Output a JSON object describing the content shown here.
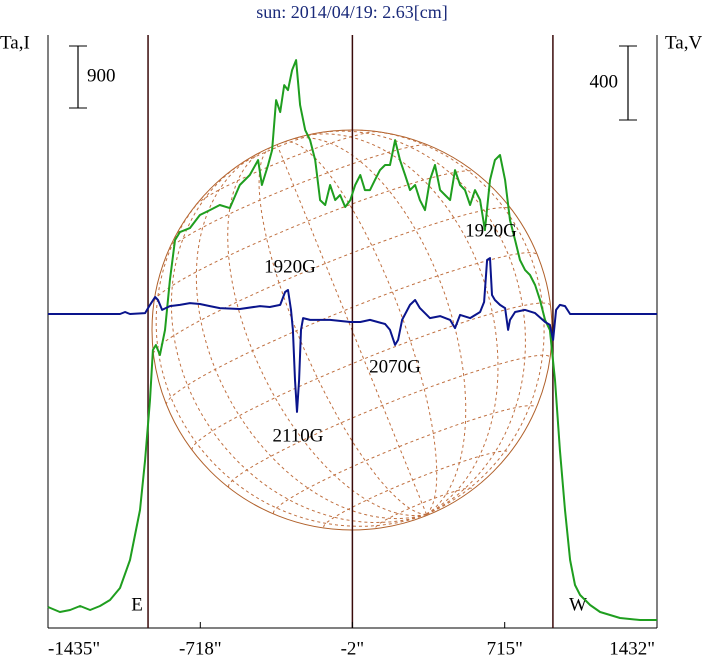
{
  "chart_data": {
    "type": "line",
    "title": "sun: 2014/04/19: 2.63[cm]",
    "ylabel": "Ta,I",
    "y2label": "Ta,V",
    "xlim": [
      -1435,
      1432
    ],
    "xticks": [
      {
        "value": -1435,
        "label": "-1435\""
      },
      {
        "value": -718,
        "label": "-718\""
      },
      {
        "value": -2,
        "label": "-2\""
      },
      {
        "value": 715,
        "label": "715\""
      },
      {
        "value": 1432,
        "label": "1432\""
      }
    ],
    "ylim": [
      0,
      8600
    ],
    "y2lim": [
      -1697,
      1508
    ],
    "vlines": [
      -964,
      -2,
      942
    ],
    "limb_labels": [
      "E",
      "W"
    ],
    "scale_bars": [
      {
        "value": 900,
        "axis": "y"
      },
      {
        "value": 400,
        "axis": "y2"
      }
    ],
    "annotations": [
      "1920G",
      "1920G",
      "2070G",
      "2110G"
    ],
    "series": [
      {
        "color": "#1f9e1f",
        "x": [
          -1435,
          -1379,
          -1331,
          -1284,
          -1237,
          -1190,
          -1143,
          -1096,
          -1049,
          -1002,
          -978,
          -955,
          -941,
          -927,
          -908,
          -884,
          -861,
          -837,
          -814,
          -767,
          -720,
          -673,
          -626,
          -579,
          -532,
          -485,
          -446,
          -428,
          -399,
          -380,
          -361,
          -342,
          -323,
          -305,
          -286,
          -267,
          -248,
          -224,
          -201,
          -177,
          -154,
          -130,
          -107,
          -83,
          -60,
          -36,
          -12,
          11,
          35,
          57,
          81,
          104,
          128,
          152,
          175,
          199,
          222,
          246,
          269,
          293,
          316,
          340,
          363,
          387,
          411,
          434,
          458,
          481,
          505,
          528,
          552,
          575,
          599,
          622,
          646,
          669,
          693,
          717,
          740,
          764,
          787,
          811,
          834,
          858,
          881,
          905,
          928,
          952,
          975,
          999,
          1023,
          1046,
          1070,
          1117,
          1164,
          1258,
          1352,
          1432
        ],
        "values": [
          305,
          232,
          261,
          319,
          261,
          319,
          406,
          580,
          986,
          1711,
          2436,
          3306,
          4031,
          4104,
          3959,
          4321,
          5046,
          5626,
          5742,
          5800,
          5989,
          6061,
          6134,
          6090,
          6424,
          6569,
          6786,
          6424,
          6714,
          6931,
          7656,
          7482,
          7874,
          7801,
          8091,
          8236,
          7584,
          7221,
          7076,
          6786,
          6206,
          6134,
          6424,
          6206,
          6279,
          6105,
          6206,
          6424,
          6569,
          6351,
          6351,
          6496,
          6641,
          6714,
          6714,
          7076,
          6786,
          6569,
          6351,
          6424,
          6206,
          6061,
          6496,
          6714,
          6351,
          6279,
          6206,
          6641,
          6424,
          6351,
          6134,
          6351,
          6206,
          5771,
          6496,
          6786,
          6859,
          6496,
          5916,
          5626,
          5336,
          5191,
          5119,
          4974,
          4756,
          4466,
          4321,
          3596,
          2581,
          1711,
          986,
          624,
          479,
          334,
          232,
          145,
          116,
          116
        ]
      },
      {
        "color": "#0a148c",
        "axis": "y2",
        "x": [
          -1435,
          -1096,
          -1072,
          -1049,
          -978,
          -955,
          -931,
          -917,
          -898,
          -861,
          -814,
          -767,
          -720,
          -673,
          -626,
          -532,
          -437,
          -391,
          -342,
          -319,
          -305,
          -291,
          -282,
          -272,
          -263,
          -253,
          -244,
          -234,
          -201,
          -107,
          -12,
          35,
          81,
          152,
          175,
          199,
          213,
          232,
          269,
          293,
          316,
          363,
          411,
          458,
          481,
          505,
          552,
          599,
          618,
          632,
          646,
          655,
          669,
          693,
          717,
          731,
          740,
          764,
          811,
          858,
          905,
          928,
          943,
          957,
          975,
          999,
          1023,
          1432
        ],
        "values": [
          0,
          0,
          11,
          0,
          5,
          49,
          92,
          76,
          22,
          43,
          49,
          59,
          54,
          43,
          32,
          27,
          43,
          38,
          49,
          119,
          130,
          22,
          -86,
          -356,
          -529,
          -356,
          -86,
          -22,
          -32,
          -32,
          -43,
          -43,
          -32,
          -54,
          -86,
          -167,
          -140,
          -32,
          49,
          76,
          32,
          -22,
          -11,
          -32,
          -76,
          -5,
          -22,
          11,
          65,
          292,
          302,
          103,
          76,
          49,
          32,
          -86,
          -32,
          11,
          22,
          5,
          -43,
          -59,
          -140,
          22,
          49,
          43,
          0,
          0
        ]
      }
    ]
  }
}
